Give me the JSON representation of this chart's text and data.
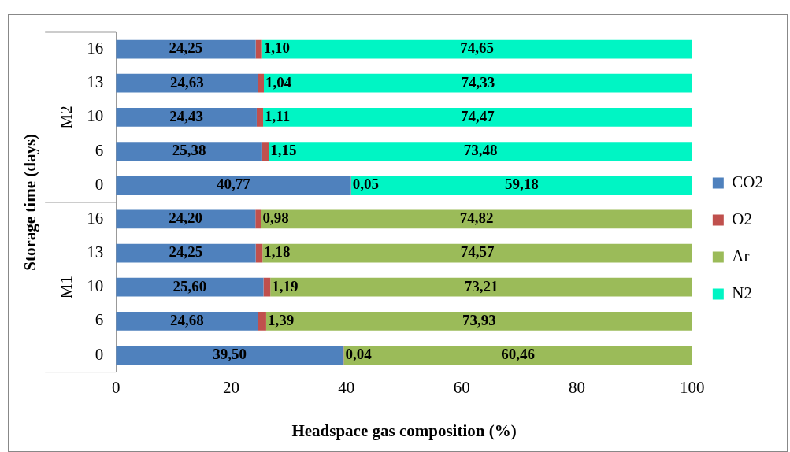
{
  "chart_data": {
    "type": "bar",
    "orientation": "horizontal",
    "stacked": true,
    "xlabel": "Headspace gas composition (%)",
    "ylabel": "Storage time (days)",
    "categories": [
      "16",
      "13",
      "10",
      "6",
      "0",
      "16",
      "13",
      "10",
      "6",
      "0"
    ],
    "annotations": [
      "M2",
      "M1"
    ],
    "xlim": [
      0,
      100
    ],
    "xticks": [
      0,
      20,
      40,
      60,
      80,
      100
    ],
    "grid": false,
    "legend": "right",
    "series": [
      {
        "name": "CO2",
        "color": "#4f81bd",
        "values": [
          24.25,
          24.63,
          24.43,
          25.38,
          40.77,
          24.2,
          24.25,
          25.6,
          24.68,
          39.5
        ],
        "value_labels": [
          "24,25",
          "24,63",
          "24,43",
          "25,38",
          "40,77",
          "24,20",
          "24,25",
          "25,60",
          "24,68",
          "39,50"
        ]
      },
      {
        "name": "O2",
        "color": "#c0504d",
        "values": [
          1.1,
          1.04,
          1.11,
          1.15,
          0.05,
          0.98,
          1.18,
          1.19,
          1.39,
          0.04
        ],
        "value_labels": [
          "1,10",
          "1,04",
          "1,11",
          "1,15",
          "0,05",
          "0,98",
          "1,18",
          "1,19",
          "1,39",
          "0,04"
        ]
      },
      {
        "name": "Ar",
        "color": "#9bbb59",
        "values": [
          null,
          null,
          null,
          null,
          null,
          74.82,
          74.57,
          73.21,
          73.93,
          60.46
        ],
        "value_labels": [
          null,
          null,
          null,
          null,
          null,
          "74,82",
          "74,57",
          "73,21",
          "73,93",
          "60,46"
        ]
      },
      {
        "name": "N2",
        "color": "#00f5c4",
        "values": [
          74.65,
          74.33,
          74.47,
          73.48,
          59.18,
          null,
          null,
          null,
          null,
          null
        ],
        "value_labels": [
          "74,65",
          "74,33",
          "74,47",
          "73,48",
          "59,18",
          null,
          null,
          null,
          null,
          null
        ]
      }
    ]
  }
}
